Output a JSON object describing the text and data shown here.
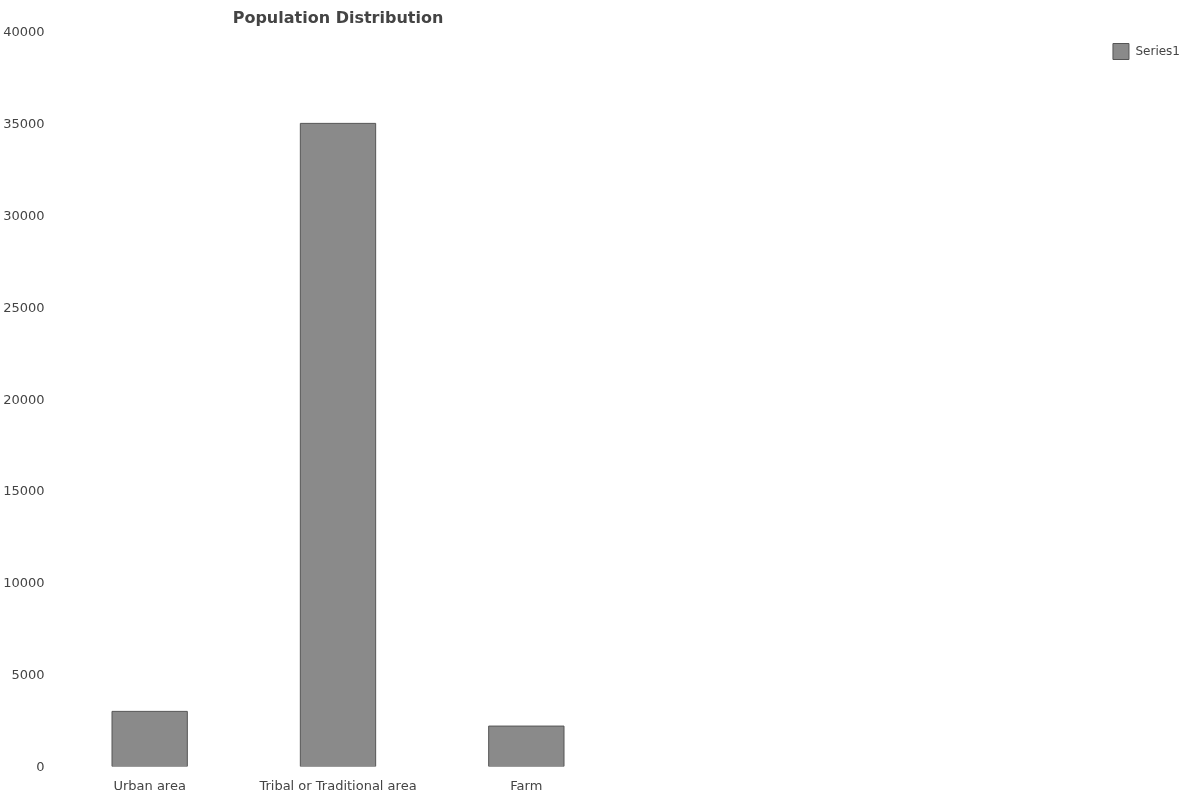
{
  "chart_data": {
    "type": "bar",
    "title": "Population Distribution",
    "categories": [
      "Urban area",
      "Tribal or Traditional area",
      "Farm"
    ],
    "series": [
      {
        "name": "Series1",
        "color": "#8a8a8a",
        "values": [
          3000,
          35000,
          2200
        ]
      }
    ],
    "ylim": [
      0,
      40000
    ],
    "yticks": [
      0,
      5000,
      10000,
      15000,
      20000,
      25000,
      30000,
      35000,
      40000
    ],
    "legend": "right",
    "grid": false
  }
}
